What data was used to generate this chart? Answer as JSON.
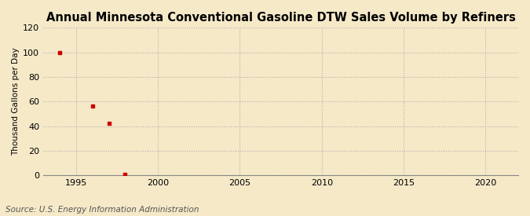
{
  "title": "Annual Minnesota Conventional Gasoline DTW Sales Volume by Refiners",
  "ylabel": "Thousand Gallons per Day",
  "source": "Source: U.S. Energy Information Administration",
  "background_color": "#f5e9c8",
  "plot_bg_color": "#f5e9c8",
  "scatter_color": "#cc0000",
  "data_x": [
    1994,
    1996,
    1997,
    1998
  ],
  "data_y": [
    100.0,
    56.5,
    42.0,
    1.0
  ],
  "xlim": [
    1993,
    2022
  ],
  "ylim": [
    0,
    120
  ],
  "xticks": [
    1995,
    2000,
    2005,
    2010,
    2015,
    2020
  ],
  "yticks": [
    0,
    20,
    40,
    60,
    80,
    100,
    120
  ],
  "title_fontsize": 10.5,
  "label_fontsize": 7.5,
  "tick_fontsize": 8,
  "source_fontsize": 7.5,
  "marker_size": 12,
  "grid_color": "#aaaaaa",
  "grid_style": ":",
  "grid_linewidth": 0.8
}
